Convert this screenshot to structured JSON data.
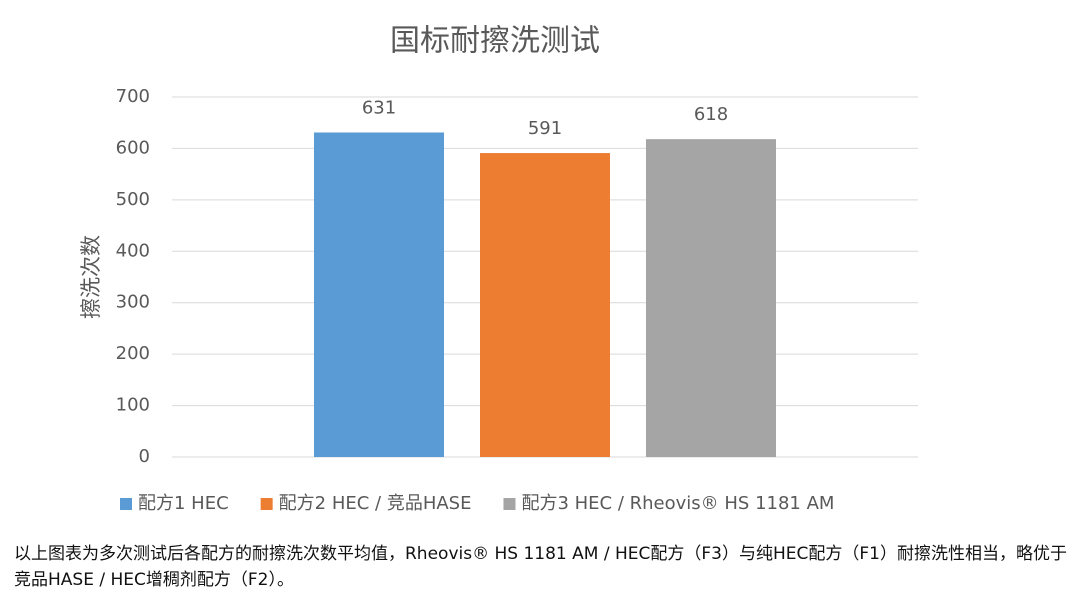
{
  "chart_data": {
    "type": "bar",
    "title": "国标耐擦洗测试",
    "y_label": "擦洗次数",
    "categories": [
      null
    ],
    "series": [
      {
        "name": "配方1 HEC",
        "color": "#5b9bd5",
        "values": [
          631
        ]
      },
      {
        "name": "配方2  HEC / 竞品HASE",
        "color": "#ed7d31",
        "values": [
          591
        ]
      },
      {
        "name": "配方3 HEC / Rheovis® HS 1181 AM",
        "color": "#a5a5a5",
        "values": [
          618
        ]
      }
    ],
    "ylim": [
      0,
      700
    ],
    "yticks": [
      0,
      100,
      200,
      300,
      400,
      500,
      600,
      700
    ],
    "grid": true,
    "legend": "bottom"
  },
  "caption": "以上图表为多次测试后各配方的耐擦洗次数平均值，Rheovis® HS 1181 AM / HEC配方（F3）与纯HEC配方（F1）耐擦洗性相当，略优于竞品HASE / HEC增稠剂配方（F2）。"
}
